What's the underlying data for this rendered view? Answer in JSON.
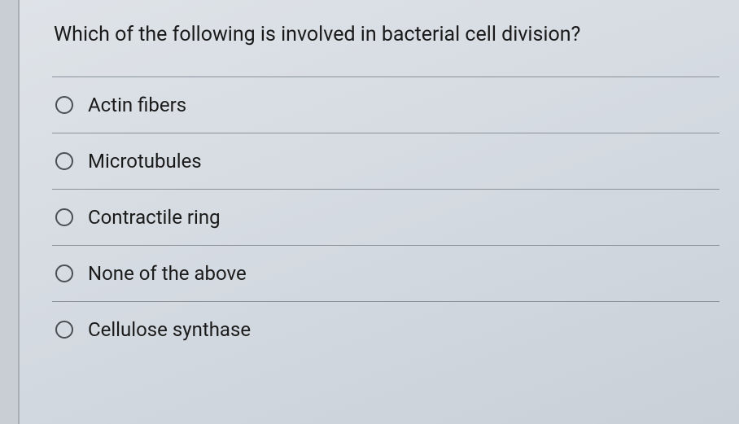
{
  "question": {
    "text": "Which of the following is involved in bacterial cell division?"
  },
  "options": [
    {
      "label": "Actin fibers"
    },
    {
      "label": "Microtubules"
    },
    {
      "label": "Contractile ring"
    },
    {
      "label": "None of the above"
    },
    {
      "label": "Cellulose synthase"
    }
  ],
  "style": {
    "background_gradient_from": "#dfe3e8",
    "background_gradient_to": "#c9d0d8",
    "divider_color": "#8a929c",
    "text_color": "#1a1a1a",
    "radio_border": "#4a4f55",
    "question_fontsize": 25,
    "option_fontsize": 24
  }
}
